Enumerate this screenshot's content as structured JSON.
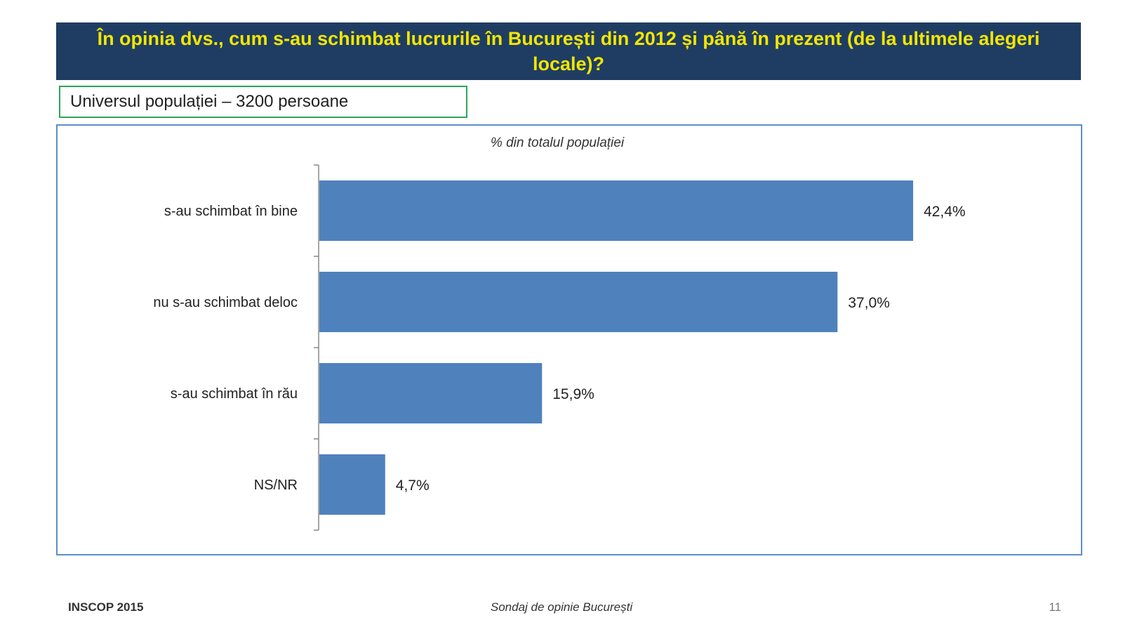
{
  "slide": {
    "title": "În opinia dvs., cum s-au schimbat lucrurile în București din 2012 și până în prezent (de la ultimele alegeri locale)?",
    "universe_label": "Universul populației – 3200 persoane"
  },
  "footer": {
    "left": "INSCOP 2015",
    "center": "Sondaj de opinie București",
    "page_number": "11"
  },
  "colors": {
    "title_bg": "#1f3d63",
    "title_text": "#f2e600",
    "bar": "#4f81bd",
    "frame": "#5b8fc8",
    "universe_border": "#2aa65a"
  },
  "chart_data": {
    "type": "bar",
    "orientation": "horizontal",
    "subtitle": "% din totalul populației",
    "categories": [
      "s-au schimbat în bine",
      "nu s-au schimbat deloc",
      "s-au schimbat în rău",
      "NS/NR"
    ],
    "values": [
      42.4,
      37.0,
      15.9,
      4.7
    ],
    "value_labels": [
      "42,4%",
      "37,0%",
      "15,9%",
      "4,7%"
    ],
    "xlim": [
      0,
      50
    ],
    "grid": false,
    "legend": "none"
  }
}
